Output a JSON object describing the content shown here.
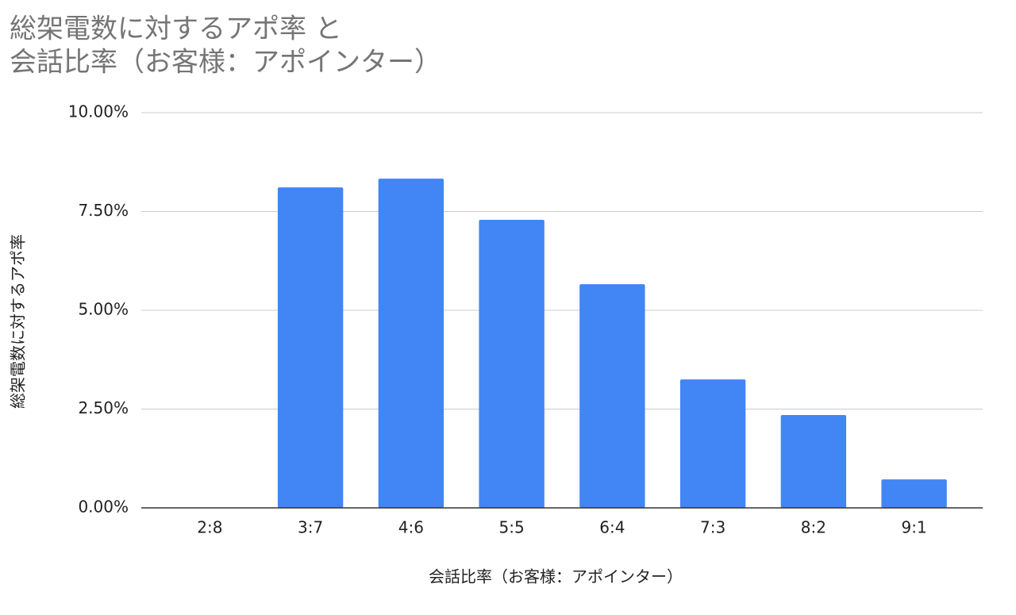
{
  "chart_data": {
    "type": "bar",
    "title": [
      "総架電数に対するアポ率 と",
      "会話比率（お客様：アポインター）"
    ],
    "x_label": "会話比率（お客様：アポインター）",
    "y_label": "総架電数に対するアポ率",
    "categories": [
      "2:8",
      "3:7",
      "4:6",
      "5:5",
      "6:4",
      "7:3",
      "8:2",
      "9:1"
    ],
    "values": [
      0,
      8.11,
      8.33,
      7.29,
      5.66,
      3.25,
      2.35,
      0.72
    ],
    "color": "#4285f4",
    "ylim": [
      0,
      10
    ],
    "yticks": [
      {
        "value": 0,
        "label": "0.00%"
      },
      {
        "value": 2.5,
        "label": "2.50%"
      },
      {
        "value": 5,
        "label": "5.00%"
      },
      {
        "value": 7.5,
        "label": "7.50%"
      },
      {
        "value": 10,
        "label": "10.00%"
      }
    ],
    "grid": true
  }
}
